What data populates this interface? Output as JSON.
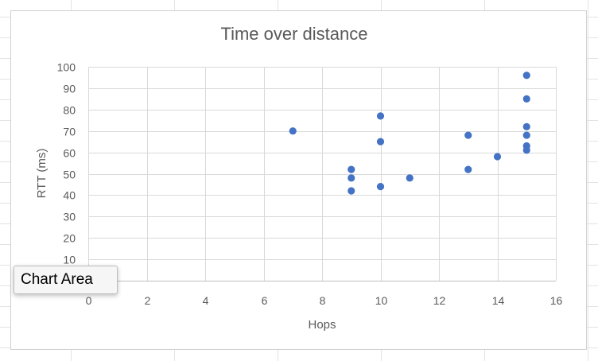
{
  "chart_data": {
    "type": "scatter",
    "title": "Time over distance",
    "xlabel": "Hops",
    "ylabel": "RTT (ms)",
    "xlim": [
      0,
      16
    ],
    "ylim": [
      0,
      100
    ],
    "xticks": [
      0,
      2,
      4,
      6,
      8,
      10,
      12,
      14,
      16
    ],
    "yticks": [
      0,
      10,
      20,
      30,
      40,
      50,
      60,
      70,
      80,
      90,
      100
    ],
    "grid": true,
    "marker_color": "#4472C4",
    "points": [
      {
        "x": 7,
        "y": 70
      },
      {
        "x": 9,
        "y": 52
      },
      {
        "x": 9,
        "y": 48
      },
      {
        "x": 9,
        "y": 42
      },
      {
        "x": 10,
        "y": 77
      },
      {
        "x": 10,
        "y": 65
      },
      {
        "x": 10,
        "y": 44
      },
      {
        "x": 11,
        "y": 48
      },
      {
        "x": 13,
        "y": 68
      },
      {
        "x": 13,
        "y": 52
      },
      {
        "x": 14,
        "y": 58
      },
      {
        "x": 15,
        "y": 96
      },
      {
        "x": 15,
        "y": 85
      },
      {
        "x": 15,
        "y": 72
      },
      {
        "x": 15,
        "y": 68
      },
      {
        "x": 15,
        "y": 63
      },
      {
        "x": 15,
        "y": 61
      }
    ]
  },
  "tooltip": {
    "label": "Chart Area"
  }
}
